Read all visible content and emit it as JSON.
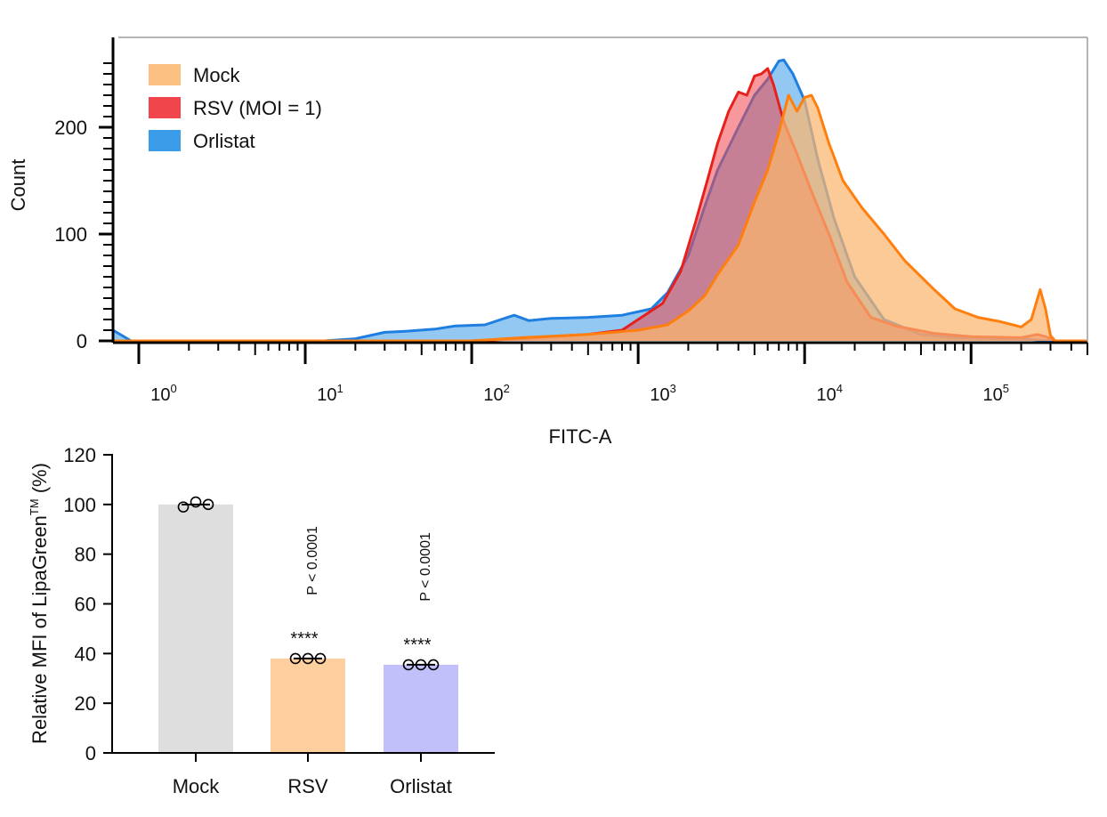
{
  "chart_data": [
    {
      "type": "area",
      "xlabel": "FITC-A",
      "ylabel": "Count",
      "x_scale": "log",
      "xlim": [
        0.7,
        500000
      ],
      "ylim": [
        0,
        270
      ],
      "x_ticks": [
        {
          "value": 1,
          "base": "10",
          "exp": "0"
        },
        {
          "value": 10,
          "base": "10",
          "exp": "1"
        },
        {
          "value": 100,
          "base": "10",
          "exp": "2"
        },
        {
          "value": 1000,
          "base": "10",
          "exp": "3"
        },
        {
          "value": 10000,
          "base": "10",
          "exp": "4"
        },
        {
          "value": 100000,
          "base": "10",
          "exp": "5"
        }
      ],
      "y_ticks": [
        {
          "value": 0,
          "label": "0"
        },
        {
          "value": 100,
          "label": "100"
        },
        {
          "value": 200,
          "label": "200"
        }
      ],
      "legend_position": "top-left",
      "series": [
        {
          "name": "Orlistat",
          "fill": "#3a9be8",
          "stroke": "#1f7fe0",
          "opacity": 0.55,
          "points": [
            [
              0.7,
              10
            ],
            [
              0.9,
              0
            ],
            [
              13,
              0
            ],
            [
              20,
              2
            ],
            [
              30,
              8
            ],
            [
              40,
              9
            ],
            [
              60,
              11
            ],
            [
              80,
              14
            ],
            [
              120,
              15
            ],
            [
              150,
              20
            ],
            [
              180,
              24
            ],
            [
              220,
              19
            ],
            [
              300,
              21
            ],
            [
              500,
              22
            ],
            [
              800,
              24
            ],
            [
              1200,
              30
            ],
            [
              1500,
              45
            ],
            [
              2000,
              80
            ],
            [
              2500,
              125
            ],
            [
              3000,
              160
            ],
            [
              4000,
              200
            ],
            [
              5000,
              230
            ],
            [
              6000,
              245
            ],
            [
              7000,
              262
            ],
            [
              7500,
              263
            ],
            [
              8500,
              250
            ],
            [
              10000,
              225
            ],
            [
              12000,
              170
            ],
            [
              15000,
              115
            ],
            [
              20000,
              60
            ],
            [
              30000,
              20
            ],
            [
              50000,
              6
            ],
            [
              80000,
              3
            ],
            [
              150000,
              2
            ],
            [
              200000,
              2
            ],
            [
              300000,
              0
            ],
            [
              500000,
              0
            ]
          ]
        },
        {
          "name": "RSV (MOI = 1)",
          "fill": "#f0454a",
          "stroke": "#e8201c",
          "opacity": 0.55,
          "points": [
            [
              0.7,
              0
            ],
            [
              100,
              0
            ],
            [
              200,
              2
            ],
            [
              300,
              4
            ],
            [
              500,
              6
            ],
            [
              800,
              10
            ],
            [
              1000,
              20
            ],
            [
              1400,
              35
            ],
            [
              1800,
              65
            ],
            [
              2200,
              110
            ],
            [
              2600,
              150
            ],
            [
              3000,
              185
            ],
            [
              3500,
              215
            ],
            [
              4000,
              233
            ],
            [
              4500,
              230
            ],
            [
              5000,
              248
            ],
            [
              5500,
              250
            ],
            [
              6000,
              255
            ],
            [
              6500,
              240
            ],
            [
              7500,
              205
            ],
            [
              9000,
              175
            ],
            [
              11000,
              140
            ],
            [
              14000,
              100
            ],
            [
              18000,
              55
            ],
            [
              25000,
              22
            ],
            [
              35000,
              14
            ],
            [
              60000,
              7
            ],
            [
              100000,
              4
            ],
            [
              200000,
              3
            ],
            [
              250000,
              6
            ],
            [
              280000,
              4
            ],
            [
              320000,
              0
            ],
            [
              500000,
              0
            ]
          ]
        },
        {
          "name": "Mock",
          "fill": "#fbb56d",
          "stroke": "#ff7f0e",
          "opacity": 0.72,
          "points": [
            [
              0.7,
              0
            ],
            [
              100,
              0
            ],
            [
              200,
              3
            ],
            [
              500,
              6
            ],
            [
              1000,
              10
            ],
            [
              1500,
              15
            ],
            [
              2000,
              28
            ],
            [
              2500,
              42
            ],
            [
              3000,
              62
            ],
            [
              4000,
              90
            ],
            [
              5000,
              130
            ],
            [
              6000,
              160
            ],
            [
              7000,
              195
            ],
            [
              8000,
              230
            ],
            [
              9000,
              215
            ],
            [
              10000,
              228
            ],
            [
              11000,
              230
            ],
            [
              12000,
              218
            ],
            [
              14000,
              185
            ],
            [
              17000,
              150
            ],
            [
              22000,
              125
            ],
            [
              30000,
              100
            ],
            [
              40000,
              75
            ],
            [
              60000,
              48
            ],
            [
              80000,
              30
            ],
            [
              110000,
              22
            ],
            [
              150000,
              18
            ],
            [
              200000,
              13
            ],
            [
              230000,
              20
            ],
            [
              260000,
              48
            ],
            [
              280000,
              30
            ],
            [
              300000,
              5
            ],
            [
              320000,
              0
            ],
            [
              500000,
              0
            ]
          ]
        }
      ]
    },
    {
      "type": "bar",
      "categories": [
        "Mock",
        "RSV",
        "Orlistat"
      ],
      "values": [
        100,
        38,
        35.5
      ],
      "colors": [
        "#dedede",
        "#fdcf9e",
        "#c2c0fa"
      ],
      "replicates": [
        [
          99,
          101,
          100
        ],
        [
          38,
          38,
          38
        ],
        [
          35.5,
          35.5,
          35.5
        ]
      ],
      "significance": [
        "",
        "****",
        "****"
      ],
      "p_labels": [
        "",
        "P < 0.0001",
        "P < 0.0001"
      ],
      "ylabel_main": "Relative MFI of LipaGreen",
      "ylabel_sup": "TM",
      "ylabel_tail": " (%)",
      "ylim": [
        0,
        120
      ],
      "y_ticks": [
        0,
        20,
        40,
        60,
        80,
        100,
        120
      ]
    }
  ]
}
